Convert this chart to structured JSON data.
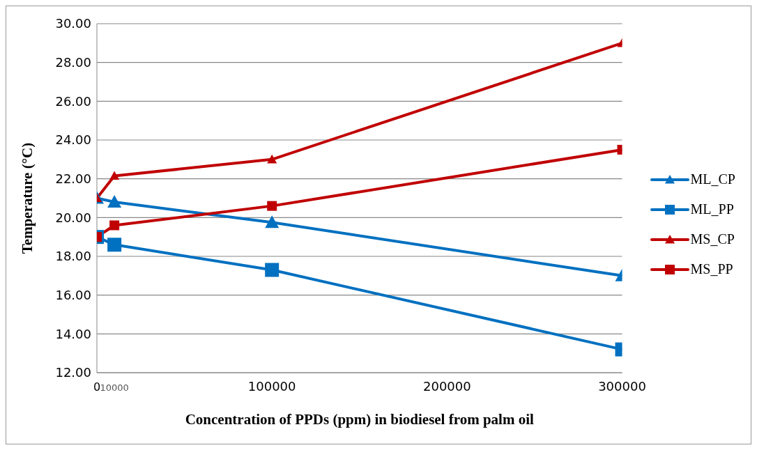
{
  "chart_data": {
    "type": "line",
    "xlabel": "Concentration of PPDs (ppm) in biodiesel from palm oil",
    "ylabel": "Temperature (°C)",
    "x": [
      0,
      10000,
      100000,
      300000
    ],
    "series": [
      {
        "name": "ML_CP",
        "color": "#0070c0",
        "marker": "triangle",
        "values": [
          21.0,
          20.8,
          19.75,
          17.0
        ]
      },
      {
        "name": "ML_PP",
        "color": "#0070c0",
        "marker": "square",
        "values": [
          19.0,
          18.6,
          17.3,
          13.2
        ]
      },
      {
        "name": "MS_CP",
        "color": "#c00000",
        "marker": "triangle",
        "values": [
          21.0,
          22.15,
          23.0,
          29.0
        ]
      },
      {
        "name": "MS_PP",
        "color": "#c00000",
        "marker": "square",
        "values": [
          19.0,
          19.6,
          20.6,
          23.5
        ]
      }
    ],
    "xlim": [
      0,
      300000
    ],
    "xticks": [
      0,
      10000,
      100000,
      200000,
      300000
    ],
    "ylim": [
      12,
      30
    ],
    "yticks": [
      {
        "value": 12,
        "label": "12.00"
      },
      {
        "value": 14,
        "label": "14.00"
      },
      {
        "value": 16,
        "label": "16.00"
      },
      {
        "value": 18,
        "label": "18.00"
      },
      {
        "value": 20,
        "label": "20.00"
      },
      {
        "value": 22,
        "label": "22.00"
      },
      {
        "value": 24,
        "label": "24.00"
      },
      {
        "value": 26,
        "label": "26.00"
      },
      {
        "value": 28,
        "label": "28.00"
      },
      {
        "value": 30,
        "label": "30.00"
      }
    ],
    "grid": "y",
    "legend": "right",
    "line_style": "solid"
  }
}
